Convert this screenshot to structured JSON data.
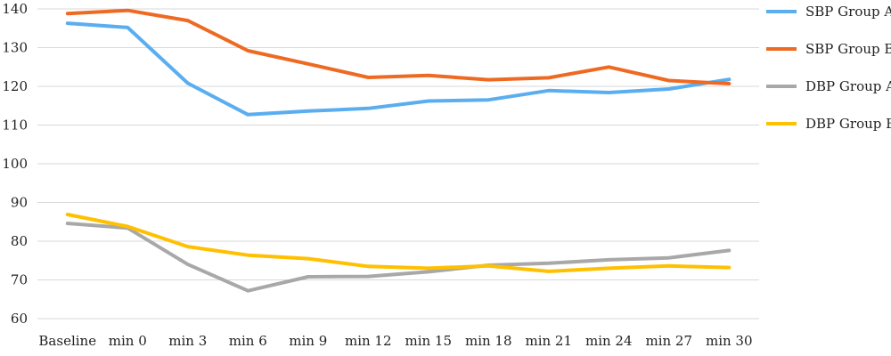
{
  "chart_data": {
    "type": "line",
    "title": "",
    "xlabel": "",
    "ylabel": "",
    "categories": [
      "Baseline",
      "min 0",
      "min 3",
      "min 6",
      "min 9",
      "min 12",
      "min 15",
      "min 18",
      "min 21",
      "min 24",
      "min 27",
      "min 30"
    ],
    "ylim": [
      60,
      140
    ],
    "yticks": [
      60,
      70,
      80,
      90,
      100,
      110,
      120,
      130,
      140
    ],
    "grid": true,
    "legend_position": "right",
    "series": [
      {
        "name": "SBP Group A",
        "color": "#5aaef0",
        "values": [
          136.3,
          135.2,
          120.8,
          112.7,
          113.6,
          114.3,
          116.2,
          116.5,
          118.9,
          118.4,
          119.3,
          121.8
        ]
      },
      {
        "name": "SBP Group B",
        "color": "#ee6a22",
        "values": [
          138.8,
          139.6,
          137.0,
          129.2,
          125.8,
          122.3,
          122.8,
          121.7,
          122.2,
          125.0,
          121.5,
          120.7
        ]
      },
      {
        "name": "DBP Group A",
        "color": "#a8a8a8",
        "values": [
          84.6,
          83.4,
          74.0,
          67.2,
          70.8,
          70.9,
          72.1,
          73.8,
          74.3,
          75.2,
          75.7,
          77.6
        ]
      },
      {
        "name": "DBP Group B",
        "color": "#ffc000",
        "values": [
          86.9,
          83.8,
          78.6,
          76.4,
          75.5,
          73.5,
          73.0,
          73.6,
          72.2,
          73.0,
          73.6,
          73.2
        ]
      }
    ]
  }
}
